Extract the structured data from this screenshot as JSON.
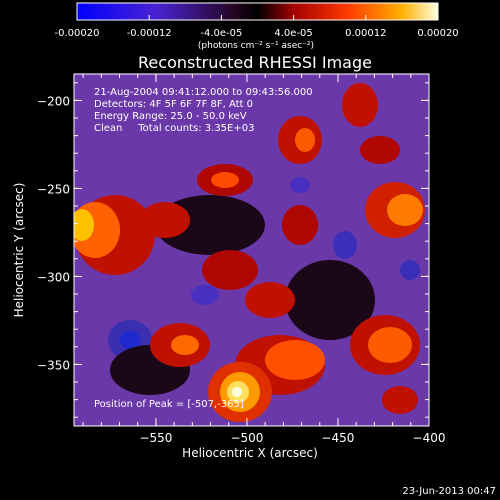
{
  "colorbar": {
    "tick_labels": [
      "-0.00020",
      "-0.00012",
      "-4.0e-05",
      "4.0e-05",
      "0.00012",
      "0.00020"
    ],
    "tick_values": [
      -0.0002,
      -0.00012,
      -4e-05,
      4e-05,
      0.00012,
      0.0002
    ],
    "range": [
      -0.0002,
      0.0002
    ],
    "units_label": "(photons cm⁻² s⁻¹ asec⁻²)"
  },
  "chart_data": {
    "type": "heatmap",
    "title": "Reconstructed RHESSI Image",
    "xlabel": "Heliocentric X (arcsec)",
    "ylabel": "Heliocentric Y (arcsec)",
    "xlim": [
      -595,
      -400
    ],
    "ylim": [
      -385,
      -185
    ],
    "x_ticks": [
      -550,
      -500,
      -450,
      -400
    ],
    "x_tick_labels": [
      "−550",
      "−500",
      "−450",
      "−400"
    ],
    "y_ticks": [
      -200,
      -250,
      -300,
      -350
    ],
    "y_tick_labels": [
      "−200",
      "−250",
      "−300",
      "−350"
    ],
    "annotations": [
      "21-Aug-2004 09:41:12.000 to 09:43:56.000",
      "Detectors: 4F 5F 6F 7F 8F, Att 0",
      "Energy Range: 25.0 - 50.0 keV",
      "Clean     Total counts: 3.35E+03"
    ],
    "peak_label": "Position of Peak = [-507,-365]",
    "peak_position": [
      -507,
      -365
    ],
    "grid": false
  },
  "footer": {
    "timestamp": "23-Jun-2013 00:47"
  },
  "colors": {
    "background": "#000000",
    "foreground": "#ffffff"
  }
}
